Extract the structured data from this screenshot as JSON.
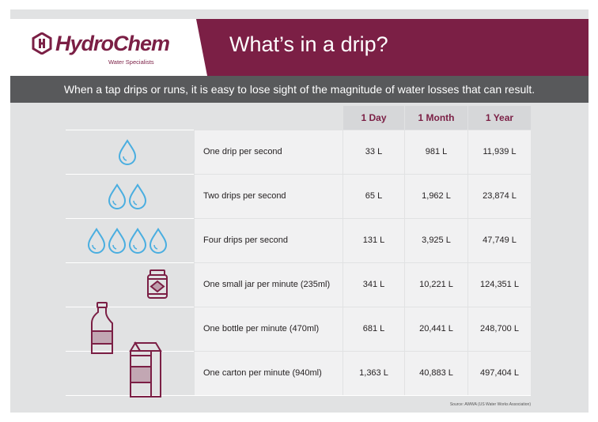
{
  "brand": {
    "name": "HydroChem",
    "tagline": "Water Specialists"
  },
  "title": "What’s in a drip?",
  "subtitle": "When a tap drips or runs, it is easy to lose sight of the magnitude of water losses that can result.",
  "table": {
    "headers": [
      "1 Day",
      "1 Month",
      "1 Year"
    ],
    "rows": [
      {
        "label": "One drip per second",
        "icon": "water-drop-icon",
        "day": "33 L",
        "month": "981 L",
        "year": "11,939 L"
      },
      {
        "label": "Two drips per second",
        "icon": "water-drop-icon",
        "day": "65 L",
        "month": "1,962 L",
        "year": "23,874 L"
      },
      {
        "label": "Four drips per second",
        "icon": "water-drop-icon",
        "day": "131 L",
        "month": "3,925 L",
        "year": "47,749 L"
      },
      {
        "label": "One small jar per minute (235ml)",
        "icon": "jar-icon",
        "day": "341 L",
        "month": "10,221 L",
        "year": "124,351 L"
      },
      {
        "label": "One bottle per minute (470ml)",
        "icon": "bottle-icon",
        "day": "681 L",
        "month": "20,441 L",
        "year": "248,700 L"
      },
      {
        "label": "One carton per minute (940ml)",
        "icon": "carton-icon",
        "day": "1,363 L",
        "month": "40,883 L",
        "year": "497,404 L"
      }
    ]
  },
  "source": "Source: AWWA (US Water Works Association)",
  "colors": {
    "brand": "#7b1f45",
    "drop": "#4aaee0",
    "bar": "#58595b",
    "background": "#e1e2e3"
  }
}
